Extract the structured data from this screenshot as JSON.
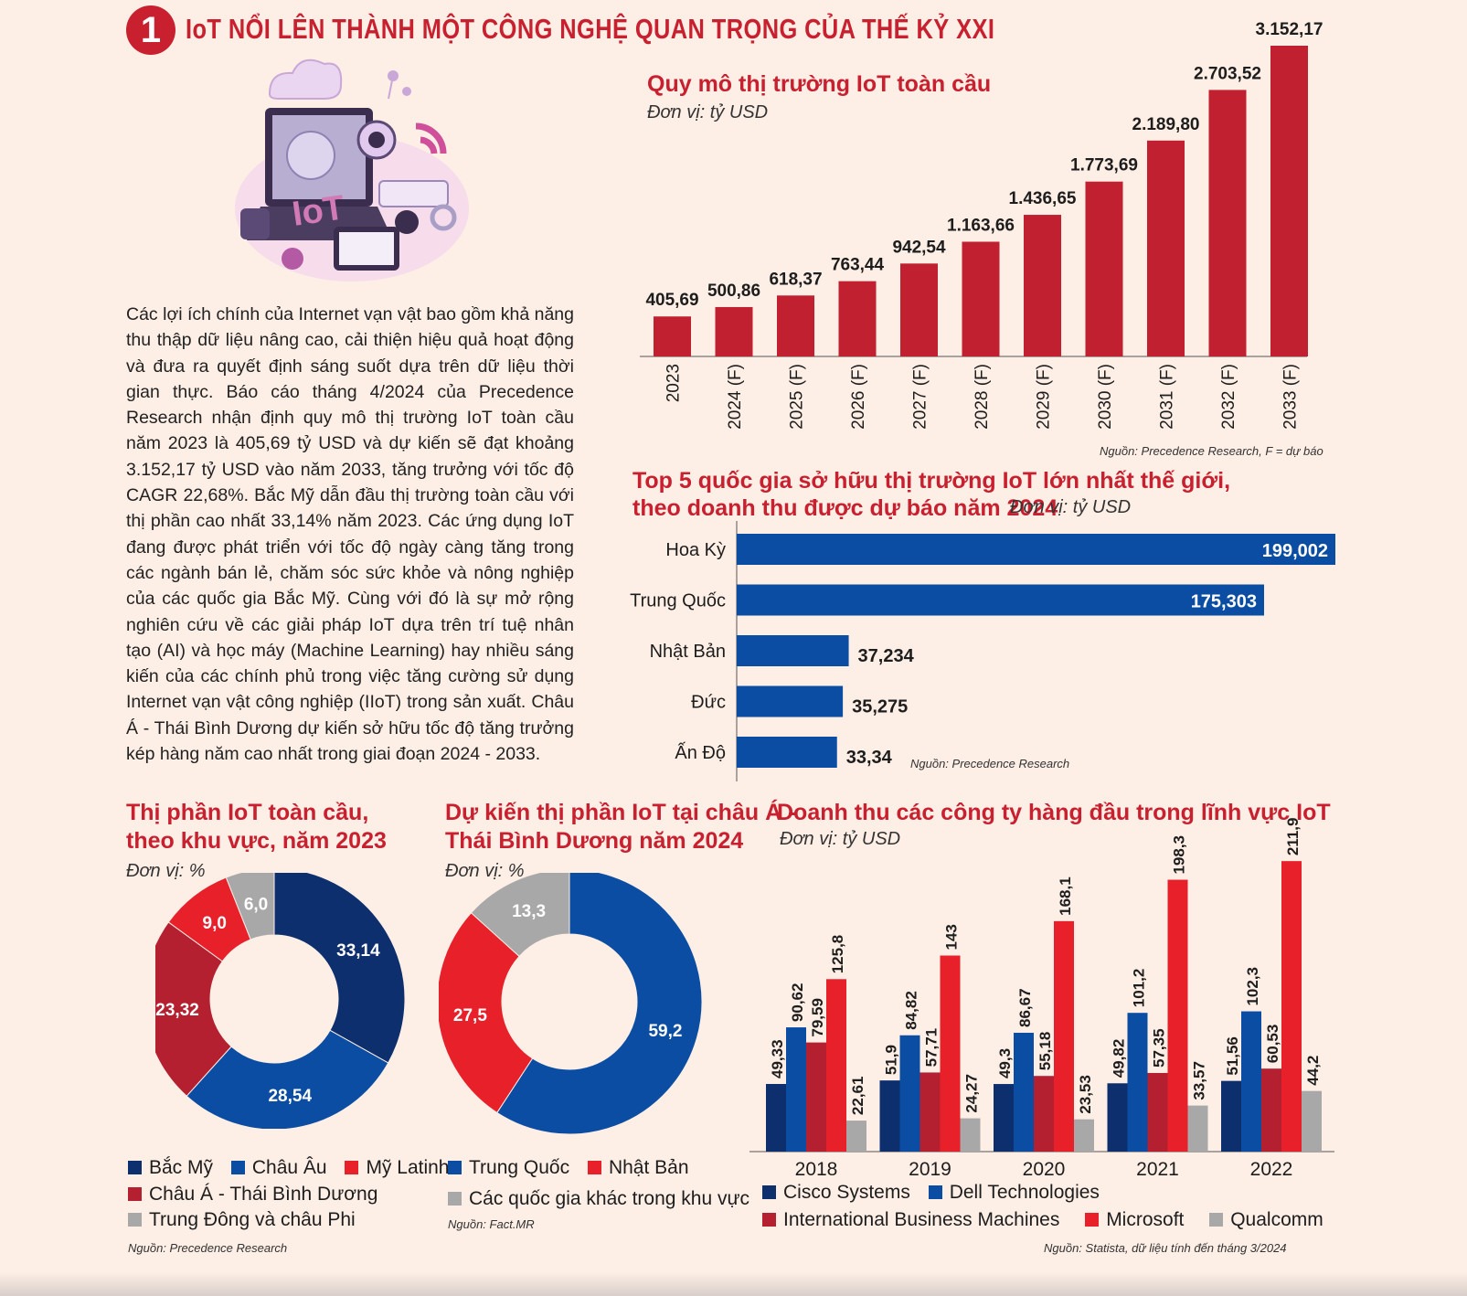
{
  "header": {
    "number": "1",
    "title": "IoT NỔI LÊN THÀNH MỘT CÔNG NGHỆ QUAN TRỌNG CỦA THẾ KỶ XXI"
  },
  "body_text": "Các lợi ích chính của Internet vạn vật bao gồm khả năng thu thập dữ liệu nâng cao, cải thiện hiệu quả hoạt động và đưa ra quyết định sáng suốt dựa trên dữ liệu thời gian thực. Báo cáo tháng 4/2024 của Precedence Research nhận định quy mô thị trường IoT toàn cầu năm 2023 là 405,69 tỷ USD và dự kiến sẽ đạt khoảng 3.152,17 tỷ USD vào năm 2033, tăng trưởng với tốc độ CAGR 22,68%. Bắc Mỹ dẫn đầu thị trường toàn cầu với thị phần cao nhất 33,14% năm 2023. Các ứng dụng IoT đang được phát triển với tốc độ ngày càng tăng trong các ngành bán lẻ, chăm sóc sức khỏe và nông nghiệp của các quốc gia Bắc Mỹ. Cùng với đó là sự mở rộng nghiên cứu về các giải pháp IoT dựa trên trí tuệ nhân tạo (AI) và học máy (Machine Learning) hay nhiều sáng kiến của các chính phủ trong việc tăng cường sử dụng Internet vạn vật công nghiệp (IIoT) trong sản xuất. Châu Á - Thái Bình Dương dự kiến sở hữu tốc độ tăng trưởng kép hàng năm cao nhất trong giai đoạn 2024 - 2033.",
  "illustration": {
    "label": "IoT"
  },
  "colors": {
    "red": "#c8202f",
    "blue": "#0a4da2",
    "navy": "#0d2f6e",
    "bright_red": "#e8202a",
    "dark_red": "#b52031",
    "gray": "#a8a8a8"
  },
  "chart_data": [
    {
      "type": "bar",
      "title": "Quy mô thị trường IoT toàn cầu",
      "unit": "Đơn vị: tỷ USD",
      "source": "Nguồn: Precedence Research, F = dự báo",
      "categories": [
        "2023",
        "2024 (F)",
        "2025 (F)",
        "2026 (F)",
        "2027 (F)",
        "2028 (F)",
        "2029 (F)",
        "2030 (F)",
        "2031 (F)",
        "2032 (F)",
        "2033 (F)"
      ],
      "values": [
        405.69,
        500.86,
        618.37,
        763.44,
        942.54,
        1163.66,
        1436.65,
        1773.69,
        2189.8,
        2703.52,
        3152.17
      ],
      "labels": [
        "405,69",
        "500,86",
        "618,37",
        "763,44",
        "942,54",
        "1.163,66",
        "1.436,65",
        "1.773,69",
        "2.189,80",
        "2.703,52",
        "3.152,17"
      ],
      "color": "#c0202f"
    },
    {
      "type": "bar",
      "orientation": "horizontal",
      "title_line1": "Top 5 quốc gia sở hữu thị trường IoT lớn nhất thế giới,",
      "title_line2": "theo doanh thu được dự báo năm 2024",
      "unit": "Đơn vị: tỷ USD",
      "source": "Nguồn: Precedence Research",
      "categories": [
        "Hoa Kỳ",
        "Trung Quốc",
        "Nhật Bản",
        "Đức",
        "Ấn Độ"
      ],
      "values": [
        199.002,
        175.303,
        37.234,
        35.275,
        33.34
      ],
      "labels": [
        "199,002",
        "175,303",
        "37,234",
        "35,275",
        "33,34"
      ],
      "color": "#0a4da2"
    },
    {
      "type": "pie",
      "donut": true,
      "title_line1": "Thị phần IoT toàn cầu,",
      "title_line2": "theo khu vực, năm 2023",
      "unit": "Đơn vị: %",
      "source": "Nguồn: Precedence Research",
      "slices": [
        {
          "name": "Bắc Mỹ",
          "value": 33.14,
          "label": "33,14",
          "color": "#0d2f6e"
        },
        {
          "name": "Châu Âu",
          "value": 28.54,
          "label": "28,54",
          "color": "#0a4da2"
        },
        {
          "name": "Châu Á - Thái Bình Dương",
          "value": 23.32,
          "label": "23,32",
          "color": "#b52031"
        },
        {
          "name": "Mỹ Latinh",
          "value": 9.0,
          "label": "9,0",
          "color": "#e8202a"
        },
        {
          "name": "Trung Đông và châu Phi",
          "value": 6.0,
          "label": "6,0",
          "color": "#a8a8a8"
        }
      ],
      "legend_rows": [
        [
          "Bắc Mỹ",
          "Châu Âu",
          "Mỹ Latinh"
        ],
        [
          "Châu Á - Thái Bình Dương"
        ],
        [
          "Trung Đông và châu Phi"
        ]
      ]
    },
    {
      "type": "pie",
      "donut": true,
      "title_line1": "Dự kiến thị phần IoT tại châu Á -",
      "title_line2": "Thái Bình  Dương năm 2024",
      "unit": "Đơn vị: %",
      "source": "Nguồn: Fact.MR",
      "slices": [
        {
          "name": "Trung Quốc",
          "value": 59.2,
          "label": "59,2",
          "color": "#0a4da2"
        },
        {
          "name": "Nhật Bản",
          "value": 27.5,
          "label": "27,5",
          "color": "#e8202a"
        },
        {
          "name": "Các quốc gia khác trong khu vực",
          "value": 13.3,
          "label": "13,3",
          "color": "#a8a8a8"
        }
      ]
    },
    {
      "type": "bar",
      "title": "Doanh thu các công ty hàng đầu trong lĩnh vực IoT",
      "unit": "Đơn vị: tỷ USD",
      "source": "Nguồn: Statista, dữ liệu tính đến tháng 3/2024",
      "categories": [
        "2018",
        "2019",
        "2020",
        "2021",
        "2022"
      ],
      "series": [
        {
          "name": "Cisco Systems",
          "color": "#0d2f6e",
          "values": [
            49.33,
            51.9,
            49.3,
            49.82,
            51.56
          ],
          "labels": [
            "49,33",
            "51,9",
            "49,3",
            "49,82",
            "51,56"
          ]
        },
        {
          "name": "Dell Technologies",
          "color": "#0a4da2",
          "values": [
            90.62,
            84.82,
            86.67,
            101.2,
            102.3
          ],
          "labels": [
            "90,62",
            "84,82",
            "86,67",
            "101,2",
            "102,3"
          ]
        },
        {
          "name": "International Business Machines",
          "color": "#b52031",
          "values": [
            79.59,
            57.71,
            55.18,
            57.35,
            60.53
          ],
          "labels": [
            "79,59",
            "57,71",
            "55,18",
            "57,35",
            "60,53"
          ]
        },
        {
          "name": "Microsoft",
          "color": "#e8202a",
          "values": [
            125.8,
            143,
            168.1,
            198.3,
            211.9
          ],
          "labels": [
            "125,8",
            "143",
            "168,1",
            "198,3",
            "211,9"
          ]
        },
        {
          "name": "Qualcomm",
          "color": "#a8a8a8",
          "values": [
            22.61,
            24.27,
            23.53,
            33.57,
            44.2
          ],
          "labels": [
            "22,61",
            "24,27",
            "23,53",
            "33,57",
            "44,2"
          ]
        }
      ]
    }
  ]
}
